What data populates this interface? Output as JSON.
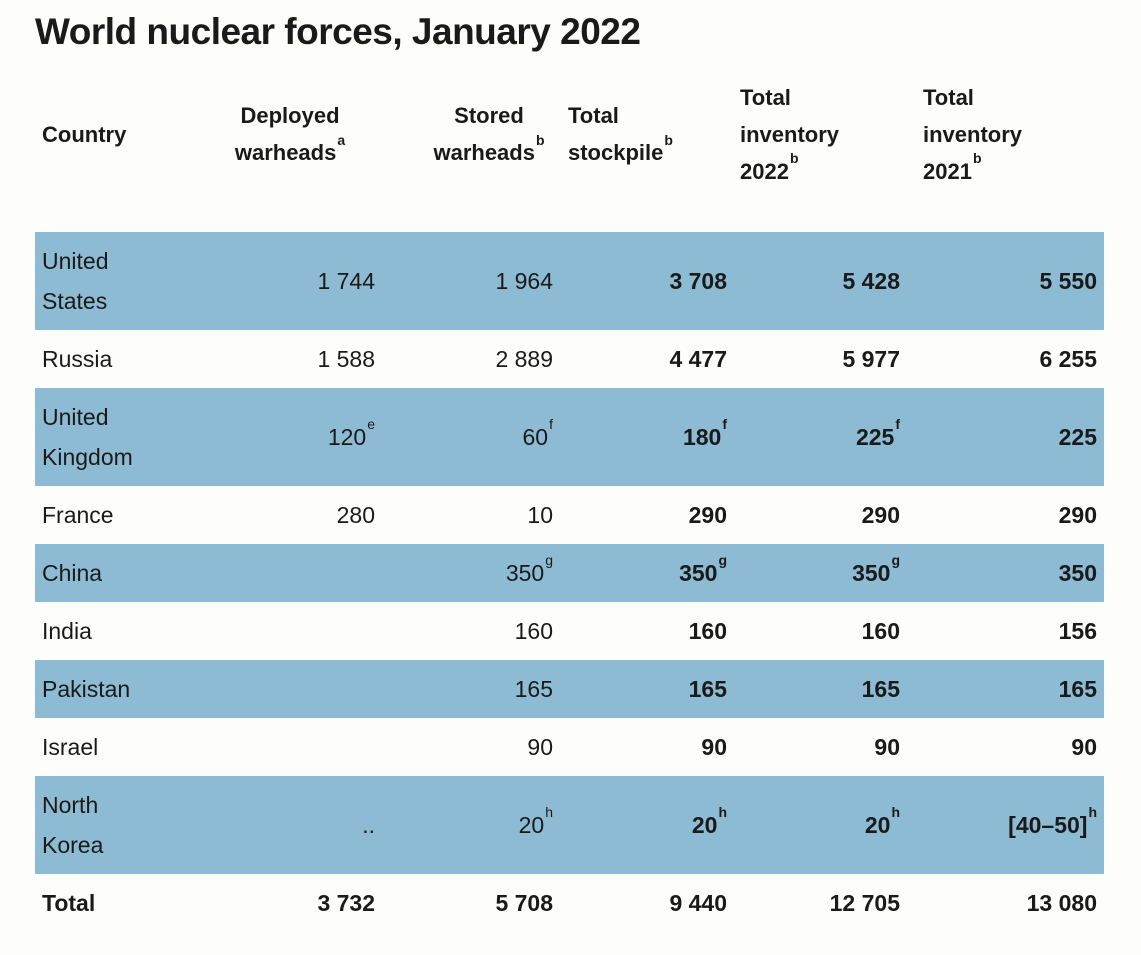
{
  "title": "World nuclear forces, January 2022",
  "colors": {
    "row_stripe": "#8dbbd3",
    "background": "#fdfdfb",
    "text": "#1a1a1a"
  },
  "chart_data": {
    "type": "table",
    "title": "World nuclear forces, January 2022",
    "missing_value_symbol": "..",
    "columns": [
      {
        "key": "country",
        "header_lines": [
          "Country"
        ],
        "footnote": null,
        "align": "left",
        "bold_values": false
      },
      {
        "key": "deployed-warheads",
        "header_lines": [
          "Deployed",
          "warheads"
        ],
        "footnote": "a",
        "align": "right",
        "bold_values": false
      },
      {
        "key": "stored-warheads",
        "header_lines": [
          "Stored",
          "warheads"
        ],
        "footnote": "b",
        "align": "right",
        "bold_values": false
      },
      {
        "key": "total-stockpile",
        "header_lines": [
          "Total",
          "stockpile"
        ],
        "footnote": "b",
        "align": "right",
        "bold_values": true
      },
      {
        "key": "total-inventory-2022",
        "header_lines": [
          "Total",
          "inventory",
          "2022"
        ],
        "footnote": "b",
        "align": "right",
        "bold_values": true
      },
      {
        "key": "total-inventory-2021",
        "header_lines": [
          "Total",
          "inventory",
          "2021"
        ],
        "footnote": "b",
        "align": "right",
        "bold_values": true
      }
    ],
    "rows": [
      {
        "country": "United States",
        "country_lines": [
          "United",
          "States"
        ],
        "shaded": true,
        "total_row": false,
        "cells": [
          {
            "text": "1 744"
          },
          {
            "text": "1 964"
          },
          {
            "text": "3 708"
          },
          {
            "text": "5 428"
          },
          {
            "text": "5 550"
          }
        ]
      },
      {
        "country": "Russia",
        "country_lines": [
          "Russia"
        ],
        "shaded": false,
        "total_row": false,
        "cells": [
          {
            "text": "1 588"
          },
          {
            "text": "2 889"
          },
          {
            "text": "4 477"
          },
          {
            "text": "5 977"
          },
          {
            "text": "6 255"
          }
        ]
      },
      {
        "country": "United Kingdom",
        "country_lines": [
          "United",
          "Kingdom"
        ],
        "shaded": true,
        "total_row": false,
        "cells": [
          {
            "text": "120",
            "footnote": "e"
          },
          {
            "text": "60",
            "footnote": "f"
          },
          {
            "text": "180",
            "footnote": "f"
          },
          {
            "text": "225",
            "footnote": "f"
          },
          {
            "text": "225"
          }
        ]
      },
      {
        "country": "France",
        "country_lines": [
          "France"
        ],
        "shaded": false,
        "total_row": false,
        "cells": [
          {
            "text": "280"
          },
          {
            "text": "10"
          },
          {
            "text": "290"
          },
          {
            "text": "290"
          },
          {
            "text": "290"
          }
        ]
      },
      {
        "country": "China",
        "country_lines": [
          "China"
        ],
        "shaded": true,
        "total_row": false,
        "cells": [
          {
            "text": ""
          },
          {
            "text": "350",
            "footnote": "g"
          },
          {
            "text": "350",
            "footnote": "g"
          },
          {
            "text": "350",
            "footnote": "g"
          },
          {
            "text": "350"
          }
        ]
      },
      {
        "country": "India",
        "country_lines": [
          "India"
        ],
        "shaded": false,
        "total_row": false,
        "cells": [
          {
            "text": ""
          },
          {
            "text": "160"
          },
          {
            "text": "160"
          },
          {
            "text": "160"
          },
          {
            "text": "156"
          }
        ]
      },
      {
        "country": "Pakistan",
        "country_lines": [
          "Pakistan"
        ],
        "shaded": true,
        "total_row": false,
        "cells": [
          {
            "text": ""
          },
          {
            "text": "165"
          },
          {
            "text": "165"
          },
          {
            "text": "165"
          },
          {
            "text": "165"
          }
        ]
      },
      {
        "country": "Israel",
        "country_lines": [
          "Israel"
        ],
        "shaded": false,
        "total_row": false,
        "cells": [
          {
            "text": ""
          },
          {
            "text": "90"
          },
          {
            "text": "90"
          },
          {
            "text": "90"
          },
          {
            "text": "90"
          }
        ]
      },
      {
        "country": "North Korea",
        "country_lines": [
          "North",
          "Korea"
        ],
        "shaded": true,
        "total_row": false,
        "cells": [
          {
            "text": ".."
          },
          {
            "text": "20",
            "footnote": "h"
          },
          {
            "text": "20",
            "footnote": "h"
          },
          {
            "text": "20",
            "footnote": "h"
          },
          {
            "text": "[40–50]",
            "footnote": "h"
          }
        ]
      },
      {
        "country": "Total",
        "country_lines": [
          "Total"
        ],
        "shaded": false,
        "total_row": true,
        "cells": [
          {
            "text": "3 732"
          },
          {
            "text": "5 708"
          },
          {
            "text": "9 440"
          },
          {
            "text": "12 705"
          },
          {
            "text": "13 080"
          }
        ]
      }
    ]
  }
}
